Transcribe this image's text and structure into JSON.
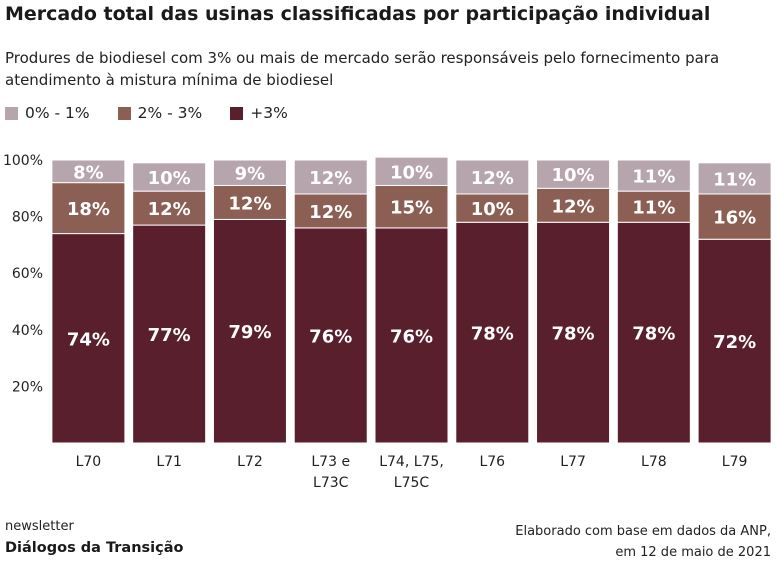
{
  "chart_data": {
    "type": "bar",
    "stacked": true,
    "title": "Mercado total das usinas classificadas por participação individual",
    "subtitle": "Produres de biodiesel com 3% ou mais de mercado serão responsáveis pelo fornecimento para atendimento à mistura mínima de biodiesel",
    "categories": [
      [
        "L70"
      ],
      [
        "L71"
      ],
      [
        "L72"
      ],
      [
        "L73 e",
        "L73C"
      ],
      [
        "L74, L75,",
        "L75C"
      ],
      [
        "L76"
      ],
      [
        "L77"
      ],
      [
        "L78"
      ],
      [
        "L79"
      ]
    ],
    "series": [
      {
        "name": "+3%",
        "color": "#5a1f2d",
        "values": [
          74,
          77,
          79,
          76,
          76,
          78,
          78,
          78,
          72
        ],
        "labels": [
          "74%",
          "77%",
          "79%",
          "76%",
          "76%",
          "78%",
          "78%",
          "78%",
          "72%"
        ]
      },
      {
        "name": "2% - 3%",
        "color": "#8c5f55",
        "values": [
          18,
          12,
          12,
          12,
          15,
          10,
          12,
          11,
          16
        ],
        "labels": [
          "18%",
          "12%",
          "12%",
          "12%",
          "15%",
          "10%",
          "12%",
          "11%",
          "16%"
        ]
      },
      {
        "name": "0% - 1%",
        "color": "#b6a5ad",
        "values": [
          8,
          10,
          9,
          12,
          10,
          12,
          10,
          11,
          11
        ],
        "labels": [
          "8%",
          "10%",
          "9%",
          "12%",
          "10%",
          "12%",
          "10%",
          "11%",
          "11%"
        ]
      }
    ],
    "legend": [
      {
        "name": "0% - 1%",
        "color": "#b6a5ad"
      },
      {
        "name": "2% - 3%",
        "color": "#8c5f55"
      },
      {
        "name": "+3%",
        "color": "#5a1f2d"
      }
    ],
    "yticks": [
      "20%",
      "40%",
      "60%",
      "80%",
      "100%"
    ],
    "ytick_values": [
      20,
      40,
      60,
      80,
      100
    ],
    "ylim": [
      0,
      100
    ],
    "grid": false
  },
  "footer": {
    "left_line1": "newsletter",
    "left_line2": "Diálogos da Transição",
    "right_line1": "Elaborado com base em dados da ANP,",
    "right_line2": "em 12 de maio de 2021"
  }
}
